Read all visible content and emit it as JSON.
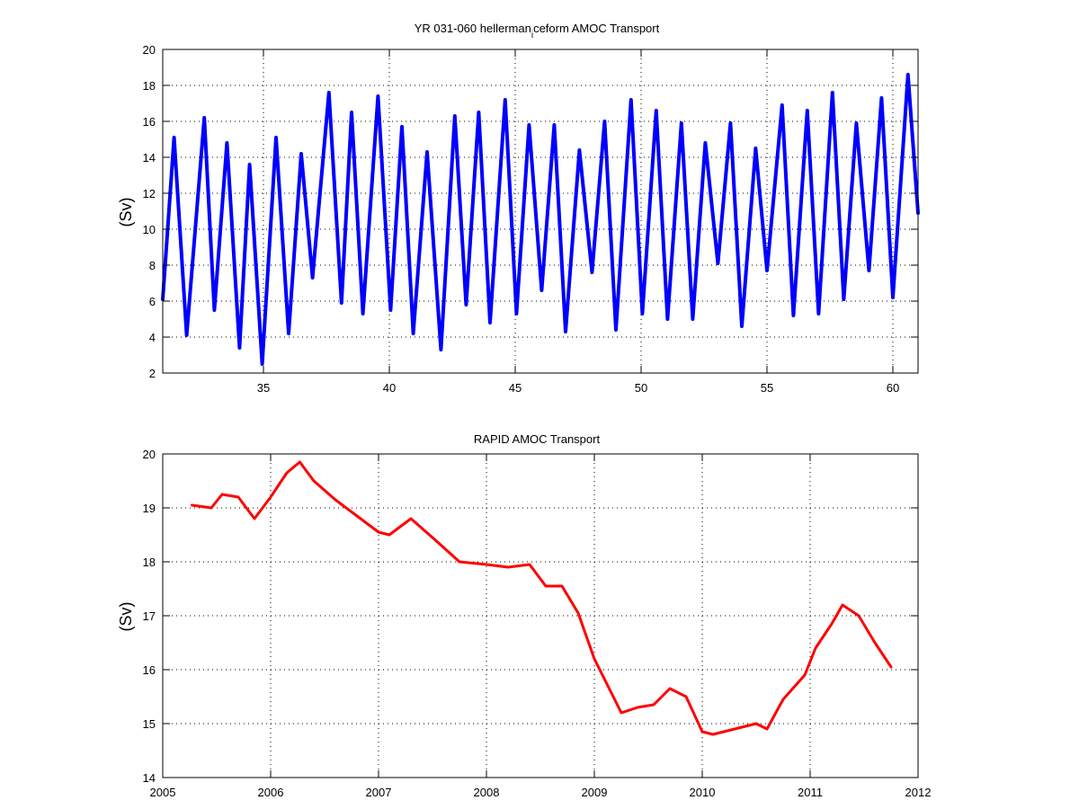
{
  "chart_data": [
    {
      "type": "line",
      "title_main": "YR 031-060 hellerman",
      "title_sub": "i",
      "title_rest": "ceform AMOC Transport",
      "ylabel": "(Sv)",
      "xlabel": "",
      "xlim": [
        31,
        61
      ],
      "ylim": [
        2,
        20
      ],
      "xticks": [
        35,
        40,
        45,
        50,
        55,
        60
      ],
      "yticks": [
        2,
        4,
        6,
        8,
        10,
        12,
        14,
        16,
        18,
        20
      ],
      "grid": true,
      "series": [
        {
          "color": "#0000ff",
          "x": [
            31.0,
            31.45,
            31.95,
            32.65,
            33.05,
            33.55,
            34.05,
            34.45,
            34.95,
            35.5,
            36.0,
            36.5,
            36.95,
            37.6,
            38.1,
            38.5,
            38.95,
            39.55,
            40.05,
            40.5,
            40.95,
            41.5,
            42.05,
            42.6,
            43.05,
            43.55,
            44.0,
            44.6,
            45.05,
            45.55,
            46.05,
            46.55,
            47.0,
            47.55,
            48.05,
            48.55,
            49.0,
            49.6,
            50.05,
            50.6,
            51.05,
            51.6,
            52.05,
            52.55,
            53.05,
            53.55,
            54.0,
            54.55,
            55.0,
            55.6,
            56.05,
            56.6,
            57.05,
            57.6,
            58.05,
            58.55,
            59.05,
            59.55,
            60.0,
            60.6,
            61.0
          ],
          "y": [
            6.1,
            15.1,
            4.1,
            16.2,
            5.5,
            14.8,
            3.4,
            13.6,
            2.5,
            15.1,
            4.2,
            14.2,
            7.3,
            17.6,
            5.9,
            16.5,
            5.3,
            17.4,
            5.5,
            15.7,
            4.2,
            14.3,
            3.3,
            16.3,
            5.8,
            16.5,
            4.8,
            17.2,
            5.3,
            15.8,
            6.6,
            15.8,
            4.3,
            14.4,
            7.6,
            16.0,
            4.4,
            17.2,
            5.3,
            16.6,
            5.0,
            15.9,
            5.0,
            14.8,
            8.1,
            15.9,
            4.6,
            14.5,
            7.7,
            16.9,
            5.2,
            16.6,
            5.3,
            17.6,
            6.1,
            15.9,
            7.7,
            17.3,
            6.2,
            18.6,
            10.9
          ]
        }
      ]
    },
    {
      "type": "line",
      "title": "RAPID AMOC Transport",
      "ylabel": "(Sv)",
      "xlabel": "",
      "xlim": [
        2005,
        2012
      ],
      "ylim": [
        14,
        20
      ],
      "xticks": [
        2005,
        2006,
        2007,
        2008,
        2009,
        2010,
        2011,
        2012
      ],
      "yticks": [
        14,
        15,
        16,
        17,
        18,
        19,
        20
      ],
      "grid": true,
      "series": [
        {
          "color": "#ff0000",
          "x": [
            2005.27,
            2005.45,
            2005.55,
            2005.7,
            2005.85,
            2006.0,
            2006.15,
            2006.27,
            2006.4,
            2006.6,
            2006.8,
            2007.0,
            2007.1,
            2007.3,
            2007.5,
            2007.75,
            2008.0,
            2008.2,
            2008.4,
            2008.55,
            2008.7,
            2008.85,
            2009.0,
            2009.15,
            2009.25,
            2009.4,
            2009.55,
            2009.7,
            2009.85,
            2010.0,
            2010.1,
            2010.2,
            2010.4,
            2010.5,
            2010.6,
            2010.75,
            2010.95,
            2011.05,
            2011.2,
            2011.3,
            2011.45,
            2011.6,
            2011.75
          ],
          "y": [
            19.05,
            19.0,
            19.25,
            19.2,
            18.8,
            19.2,
            19.65,
            19.85,
            19.5,
            19.15,
            18.85,
            18.55,
            18.5,
            18.8,
            18.45,
            18.0,
            17.95,
            17.9,
            17.95,
            17.55,
            17.55,
            17.05,
            16.2,
            15.6,
            15.2,
            15.3,
            15.35,
            15.65,
            15.5,
            14.85,
            14.8,
            14.85,
            14.95,
            15.0,
            14.9,
            15.45,
            15.9,
            16.4,
            16.85,
            17.2,
            17.0,
            16.5,
            16.05
          ]
        }
      ]
    }
  ]
}
